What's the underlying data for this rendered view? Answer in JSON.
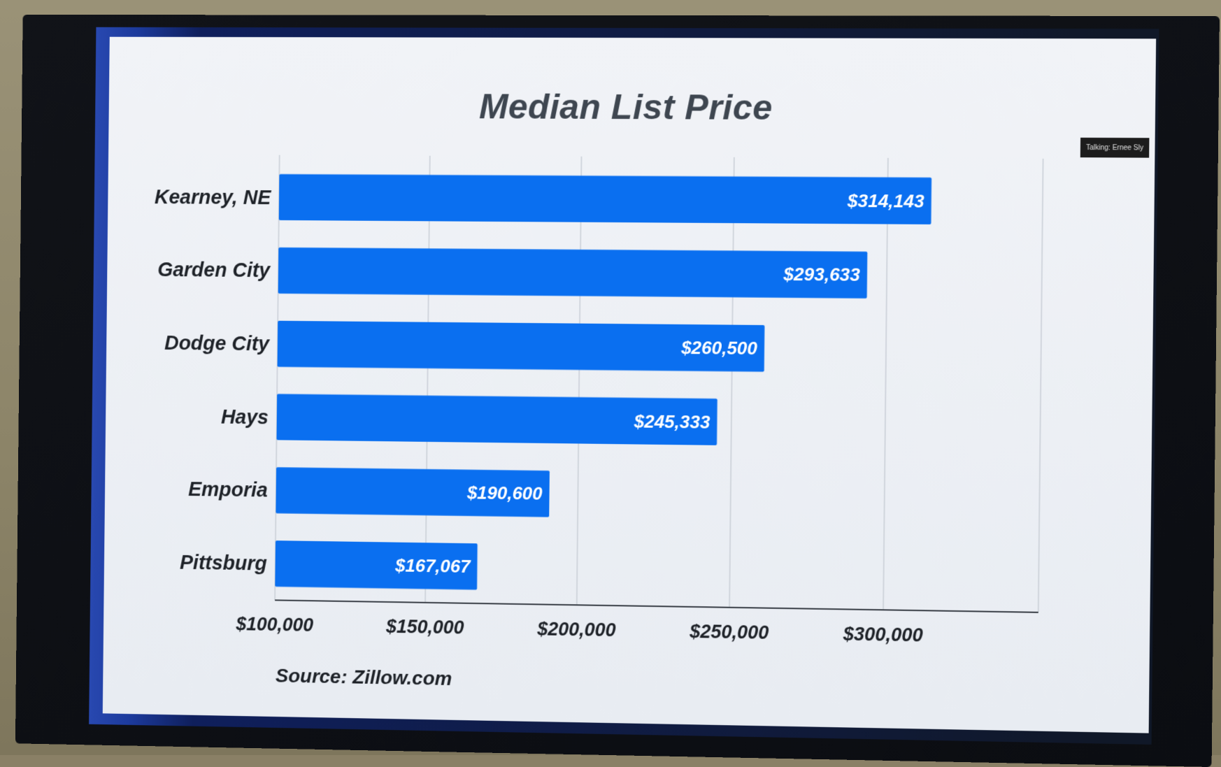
{
  "overlay": {
    "talking": "Talking: Ernee Sly"
  },
  "source": "Source: Zillow.com",
  "chart_data": {
    "type": "bar",
    "orientation": "horizontal",
    "title": "Median List Price",
    "categories": [
      "Kearney, NE",
      "Garden City",
      "Dodge City",
      "Hays",
      "Emporia",
      "Pittsburg"
    ],
    "values": [
      314143,
      293633,
      260500,
      245333,
      190600,
      167067
    ],
    "data_labels": [
      "$314,143",
      "$293,633",
      "$260,500",
      "$245,333",
      "$190,600",
      "$167,067"
    ],
    "x_ticks": [
      "$100,000",
      "$150,000",
      "$200,000",
      "$250,000",
      "$300,000"
    ],
    "x_tick_values": [
      100000,
      150000,
      200000,
      250000,
      300000
    ],
    "xlim": [
      100000,
      350000
    ],
    "grid": true,
    "bar_color": "#0a6ff0"
  }
}
